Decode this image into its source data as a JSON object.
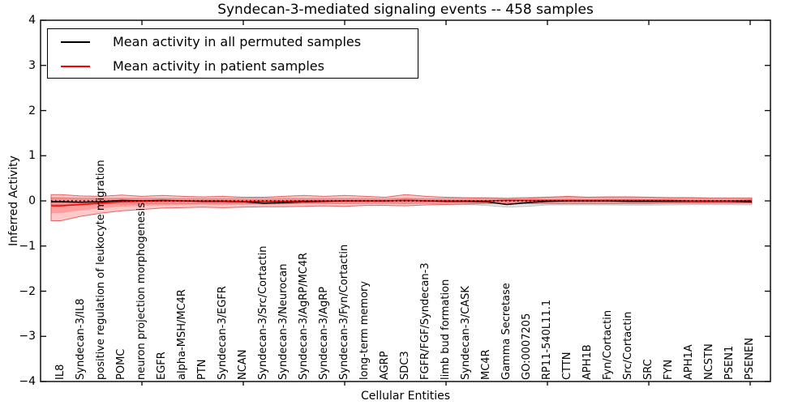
{
  "title": "Syndecan-3-mediated signaling events -- 458 samples",
  "axes": {
    "x_label": "Cellular Entities",
    "y_label": "Inferred Activity",
    "y_tick_labels": [
      "4",
      "3",
      "2",
      "1",
      "0",
      "−1",
      "−2",
      "−3",
      "−4"
    ],
    "y_tick_values": [
      4,
      3,
      2,
      1,
      0,
      -1,
      -2,
      -3,
      -4
    ]
  },
  "legend": {
    "items": [
      {
        "label": "Mean activity in all permuted samples",
        "color": "#000000"
      },
      {
        "label": "Mean activity in patient samples",
        "color": "#ff0000"
      }
    ]
  },
  "colors": {
    "black_line": "#000000",
    "red_line": "#ff0000",
    "zero_line": "#000000",
    "red_band_fill": "rgba(255,60,60,0.28)",
    "red_band_edge": "rgba(220,60,60,0.75)",
    "gray_band_fill": "rgba(110,110,110,0.18)",
    "gray_band_edge": "rgba(110,110,110,0.35)",
    "axis": "#000000"
  },
  "chart_data": {
    "type": "line",
    "title": "Syndecan-3-mediated signaling events -- 458 samples",
    "xlabel": "Cellular Entities",
    "ylabel": "Inferred Activity",
    "ylim": [
      -4,
      4
    ],
    "grid": false,
    "legend_position": "upper left",
    "categories": [
      "IL8",
      "Syndecan-3/IL8",
      "positive regulation of leukocyte migration",
      "POMC",
      "neuron projection morphogenesis",
      "EGFR",
      "alpha-MSH/MC4R",
      "PTN",
      "Syndecan-3/EGFR",
      "NCAN",
      "Syndecan-3/Src/Cortactin",
      "Syndecan-3/Neurocan",
      "Syndecan-3/AgRP/MC4R",
      "Syndecan-3/AgRP",
      "Syndecan-3/Fyn/Cortactin",
      "long-term memory",
      "AGRP",
      "SDC3",
      "FGFR/FGF/Syndecan-3",
      "limb bud formation",
      "Syndecan-3/CASK",
      "MC4R",
      "Gamma Secretase",
      "GO:0007205",
      "RP11-540L11.1",
      "CTTN",
      "APH1B",
      "Fyn/Cortactin",
      "Src/Cortactin",
      "SRC",
      "FYN",
      "APH1A",
      "NCSTN",
      "PSEN1",
      "PSENEN"
    ],
    "series": [
      {
        "name": "Mean activity in all permuted samples",
        "color": "#000000",
        "values": [
          -0.02,
          -0.03,
          -0.02,
          0.01,
          0.0,
          0.01,
          0.0,
          -0.01,
          -0.01,
          -0.02,
          -0.05,
          -0.04,
          -0.02,
          -0.01,
          0.0,
          0.0,
          0.0,
          0.01,
          0.0,
          -0.01,
          -0.01,
          -0.02,
          -0.08,
          -0.04,
          -0.01,
          0.0,
          0.0,
          0.0,
          -0.01,
          -0.01,
          -0.01,
          -0.01,
          -0.01,
          -0.01,
          -0.02
        ]
      },
      {
        "name": "Mean activity in patient samples",
        "color": "#ff0000",
        "values": [
          -0.11,
          -0.08,
          -0.05,
          -0.02,
          -0.01,
          0.0,
          0.0,
          0.0,
          0.0,
          -0.01,
          -0.01,
          -0.01,
          0.0,
          0.0,
          0.0,
          0.0,
          0.0,
          0.01,
          0.0,
          0.0,
          0.0,
          0.0,
          0.01,
          0.01,
          0.01,
          0.01,
          0.01,
          0.01,
          0.01,
          0.01,
          0.01,
          0.0,
          0.0,
          0.0,
          0.01
        ]
      }
    ],
    "bands": [
      {
        "name": "permuted-samples-spread",
        "fill": "rgba(110,110,110,0.18)",
        "edge": "rgba(110,110,110,0.35)",
        "upper": [
          0.07,
          0.065,
          0.06,
          0.06,
          0.06,
          0.06,
          0.055,
          0.055,
          0.055,
          0.06,
          0.06,
          0.06,
          0.055,
          0.055,
          0.055,
          0.055,
          0.05,
          0.055,
          0.05,
          0.06,
          0.07,
          0.075,
          0.07,
          0.08,
          0.085,
          0.085,
          0.08,
          0.08,
          0.08,
          0.08,
          0.075,
          0.075,
          0.07,
          0.07,
          0.07
        ],
        "lower": [
          -0.08,
          -0.075,
          -0.07,
          -0.065,
          -0.065,
          -0.06,
          -0.06,
          -0.06,
          -0.06,
          -0.065,
          -0.07,
          -0.065,
          -0.06,
          -0.06,
          -0.06,
          -0.06,
          -0.055,
          -0.06,
          -0.06,
          -0.07,
          -0.08,
          -0.1,
          -0.14,
          -0.12,
          -0.09,
          -0.09,
          -0.09,
          -0.09,
          -0.095,
          -0.095,
          -0.09,
          -0.085,
          -0.085,
          -0.085,
          -0.09
        ]
      },
      {
        "name": "patient-samples-spread-outer",
        "fill": "rgba(255,60,60,0.28)",
        "edge": "rgba(220,60,60,0.75)",
        "upper": [
          0.14,
          0.11,
          0.1,
          0.13,
          0.1,
          0.12,
          0.1,
          0.09,
          0.1,
          0.08,
          0.08,
          0.1,
          0.12,
          0.1,
          0.12,
          0.1,
          0.08,
          0.14,
          0.1,
          0.08,
          0.07,
          0.06,
          0.05,
          0.06,
          0.08,
          0.1,
          0.08,
          0.09,
          0.09,
          0.08,
          0.07,
          0.07,
          0.06,
          0.06,
          0.06
        ],
        "lower": [
          -0.44,
          -0.34,
          -0.27,
          -0.22,
          -0.19,
          -0.16,
          -0.15,
          -0.14,
          -0.15,
          -0.14,
          -0.13,
          -0.13,
          -0.12,
          -0.11,
          -0.12,
          -0.1,
          -0.1,
          -0.11,
          -0.09,
          -0.08,
          -0.07,
          -0.06,
          -0.05,
          -0.06,
          -0.06,
          -0.06,
          -0.06,
          -0.06,
          -0.06,
          -0.06,
          -0.05,
          -0.05,
          -0.05,
          -0.05,
          -0.05
        ]
      },
      {
        "name": "patient-samples-spread-inner",
        "fill": "rgba(255,60,60,0.30)",
        "edge": "none",
        "upper": [
          0.08,
          0.06,
          0.05,
          0.07,
          0.05,
          0.06,
          0.05,
          0.05,
          0.05,
          0.04,
          0.04,
          0.05,
          0.06,
          0.05,
          0.06,
          0.05,
          0.04,
          0.07,
          0.05,
          0.04,
          0.04,
          0.03,
          0.03,
          0.03,
          0.04,
          0.05,
          0.04,
          0.05,
          0.05,
          0.04,
          0.04,
          0.04,
          0.03,
          0.03,
          0.03
        ],
        "lower": [
          -0.27,
          -0.21,
          -0.16,
          -0.13,
          -0.11,
          -0.1,
          -0.09,
          -0.08,
          -0.09,
          -0.08,
          -0.08,
          -0.08,
          -0.07,
          -0.07,
          -0.07,
          -0.06,
          -0.06,
          -0.07,
          -0.05,
          -0.05,
          -0.04,
          -0.04,
          -0.03,
          -0.04,
          -0.04,
          -0.04,
          -0.04,
          -0.04,
          -0.04,
          -0.04,
          -0.03,
          -0.03,
          -0.03,
          -0.03,
          -0.03
        ]
      }
    ],
    "zero_reference_line": {
      "style": "dotted",
      "color": "#000000",
      "y": 0
    }
  }
}
